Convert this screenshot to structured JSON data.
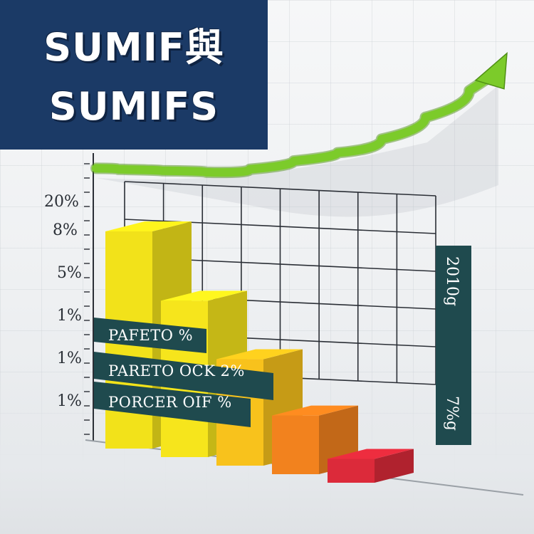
{
  "title": {
    "line1": "SUMIF與",
    "line2": "SUMIFS"
  },
  "chart_data": {
    "type": "bar",
    "y_tick_labels": [
      "20%",
      "8%",
      "5%",
      "1%",
      "1%",
      "1%"
    ],
    "categories": [
      "",
      "",
      "",
      "",
      ""
    ],
    "values": [
      100,
      72,
      49,
      27,
      11
    ],
    "bar_colors": [
      "#f2e21a",
      "#f6e51c",
      "#f8c21c",
      "#f2821e",
      "#dc2a3a"
    ],
    "trend_line": {
      "color": "#7ccb2a",
      "values": [
        100,
        98,
        97,
        95,
        103,
        112,
        120,
        140,
        165,
        195
      ]
    },
    "banners": [
      {
        "text": "PAFETO  %"
      },
      {
        "text": "PARETO OCK  2%"
      },
      {
        "text": "PORCER OIF  %"
      }
    ],
    "side_banner": {
      "top_text": "2010g",
      "bottom_text": "7%g"
    },
    "grid": true,
    "legend": "none"
  },
  "colors": {
    "title_bg": "#1b3a66",
    "banner_bg": "#1f4a4e",
    "grid_line": "#2b2f36"
  }
}
